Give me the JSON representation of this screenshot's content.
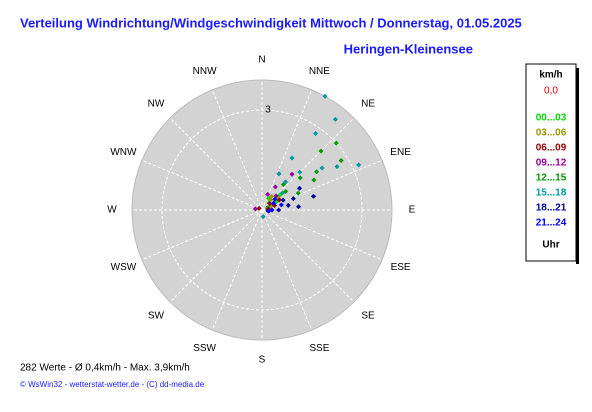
{
  "chart_data": {
    "type": "polar-scatter",
    "title": "Verteilung Windrichtung/Windgeschwindigkeit Mittwoch / Donnerstag, 01.05.2025",
    "subtitle": "Heringen-Kleinensee",
    "compass": [
      "N",
      "NNE",
      "NE",
      "ENE",
      "E",
      "ESE",
      "SE",
      "SSE",
      "S",
      "SSW",
      "SW",
      "WSW",
      "W",
      "WNW",
      "NW",
      "NNW"
    ],
    "rlim": [
      0,
      3.9
    ],
    "rticks": [
      0,
      3
    ],
    "legend_title": "km/h",
    "legend_calm": "0,0",
    "legend_footer": "Uhr",
    "summary": "282 Werte   -   Ø 0,4km/h  -  Max. 3,9km/h",
    "credits": "© WsWin32  -  wetterstat-wetter.de  -  (C) dd-media.de",
    "series": [
      {
        "name": "00...03",
        "color": "#00dd00",
        "directions": [
          45,
          60,
          30,
          70,
          50
        ],
        "values": [
          0.3,
          0.5,
          0.4,
          0.2,
          0.7
        ]
      },
      {
        "name": "03...06",
        "color": "#999900",
        "directions": [
          40,
          55,
          65,
          35
        ],
        "values": [
          0.4,
          0.6,
          0.3,
          0.5
        ]
      },
      {
        "name": "06...09",
        "color": "#990000",
        "directions": [
          50,
          70,
          80,
          60,
          300
        ],
        "values": [
          0.3,
          0.4,
          0.2,
          0.6,
          0.1
        ]
      },
      {
        "name": "09...12",
        "color": "#990099",
        "directions": [
          30,
          25,
          45,
          60,
          280,
          40,
          20
        ],
        "values": [
          0.8,
          1.2,
          0.6,
          0.4,
          0.2,
          1.4,
          0.5
        ]
      },
      {
        "name": "12...15",
        "color": "#009900",
        "directions": [
          50,
          55,
          45,
          60,
          65,
          40,
          48,
          58,
          52,
          75
        ],
        "values": [
          1.5,
          2.0,
          2.5,
          1.8,
          1.2,
          1.0,
          3.0,
          2.8,
          0.9,
          1.6
        ]
      },
      {
        "name": "15...18",
        "color": "#009999",
        "directions": [
          29,
          39,
          65,
          35,
          30,
          45,
          55,
          25,
          50,
          40,
          60,
          170
        ],
        "values": [
          3.9,
          3.5,
          3.2,
          2.8,
          1.8,
          1.6,
          2.2,
          1.2,
          0.8,
          1.1,
          2.6,
          0.2
        ]
      },
      {
        "name": "18...21",
        "color": "#000099",
        "directions": [
          70,
          80,
          60,
          75,
          90,
          65,
          85
        ],
        "values": [
          1.0,
          0.8,
          1.3,
          1.6,
          0.5,
          0.7,
          1.1
        ]
      },
      {
        "name": "21...24",
        "color": "#0000ff",
        "directions": [
          60,
          75,
          50,
          90,
          100
        ],
        "values": [
          0.4,
          0.6,
          0.5,
          0.3,
          0.2
        ]
      }
    ]
  }
}
